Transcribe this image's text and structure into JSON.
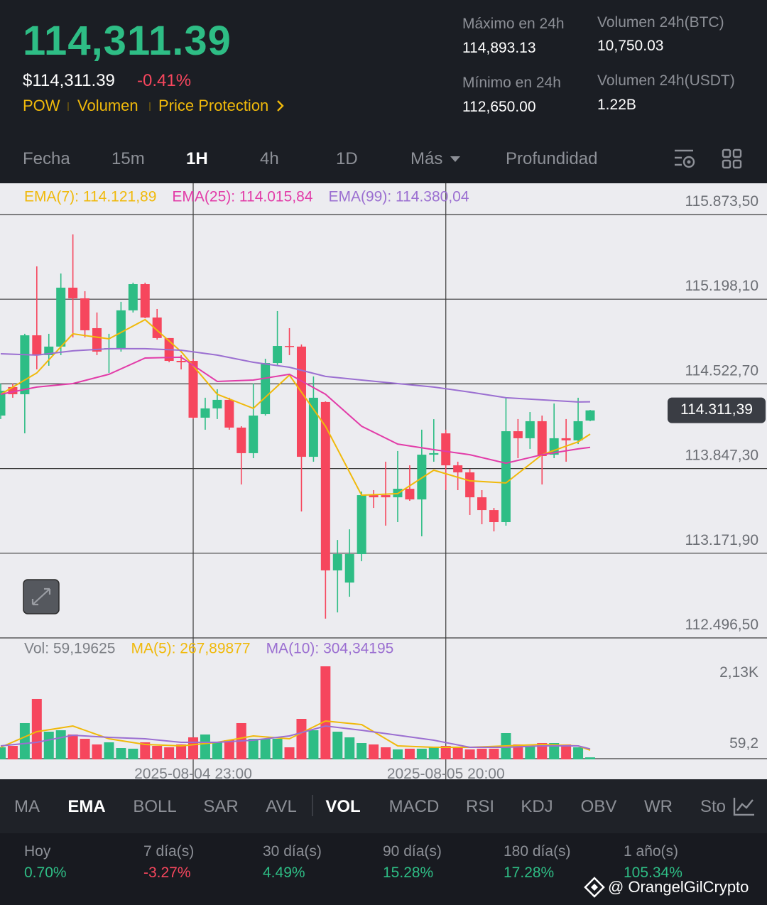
{
  "header": {
    "price": "114,311.39",
    "usd_price": "$114,311.39",
    "change": "-0.41%",
    "tags": [
      "POW",
      "Volumen",
      "Price Protection"
    ],
    "stats": [
      {
        "label": "Máximo en 24h",
        "value": "114,893.13"
      },
      {
        "label": "Volumen 24h(BTC)",
        "value": "10,750.03"
      },
      {
        "label": "Mínimo en 24h",
        "value": "112,650.00"
      },
      {
        "label": "Volumen 24h(USDT)",
        "value": "1.22B"
      }
    ]
  },
  "intervals": {
    "items": [
      "Fecha",
      "15m",
      "1H",
      "4h",
      "1D",
      "Más",
      "Profundidad"
    ],
    "active": 2
  },
  "chart_data": [
    {
      "type": "candlestick",
      "categories": [
        null,
        null,
        null,
        null,
        null,
        null,
        null,
        null,
        null,
        null,
        null,
        null,
        null,
        null,
        null,
        null,
        "2025-08-04 23:00",
        null,
        null,
        null,
        null,
        null,
        null,
        null,
        null,
        null,
        null,
        null,
        null,
        null,
        null,
        null,
        null,
        null,
        null,
        null,
        null,
        "2025-08-05 20:00",
        null,
        null,
        null,
        null,
        null,
        null,
        null,
        null,
        null,
        null,
        null,
        null
      ],
      "open": [
        114270,
        114497,
        114440,
        114910,
        114752,
        114820,
        115290,
        115205,
        114967,
        114797,
        114808,
        115109,
        115318,
        115052,
        114888,
        114706,
        114706,
        114253,
        114327,
        114395,
        114174,
        113970,
        114281,
        114689,
        114825,
        114820,
        113941,
        114378,
        113035,
        112938,
        113165,
        113635,
        113635,
        113618,
        113686,
        113601,
        113958,
        114128,
        113873,
        113817,
        113618,
        113516,
        113420,
        114145,
        114089,
        114225,
        113958,
        114089,
        114072,
        114230
      ],
      "high": [
        114525,
        114525,
        114922,
        115460,
        114922,
        115403,
        115715,
        115262,
        115092,
        114922,
        115177,
        115330,
        115330,
        115120,
        114888,
        114752,
        114723,
        114412,
        114480,
        114412,
        114185,
        114525,
        114723,
        115103,
        114967,
        114837,
        114582,
        114383,
        113278,
        113363,
        113664,
        113675,
        113902,
        113987,
        113873,
        114157,
        114241,
        114157,
        113902,
        113845,
        113675,
        113533,
        114412,
        114242,
        114298,
        114270,
        114366,
        114242,
        114412,
        114315
      ],
      "low": [
        114242,
        114412,
        114128,
        114638,
        114667,
        114752,
        114893,
        114893,
        114752,
        114610,
        114780,
        115092,
        115046,
        114876,
        114695,
        114638,
        114242,
        114157,
        114242,
        114157,
        113720,
        113930,
        114270,
        114667,
        114752,
        113505,
        113902,
        112650,
        112700,
        112825,
        113108,
        113533,
        113392,
        113420,
        113590,
        113307,
        113902,
        113675,
        113675,
        113477,
        113403,
        113346,
        113392,
        113930,
        114004,
        113720,
        113930,
        113902,
        114043,
        114225
      ],
      "close": [
        114468,
        114440,
        114910,
        114752,
        114820,
        115290,
        115205,
        114950,
        114780,
        114808,
        115109,
        115318,
        115052,
        114888,
        114706,
        114695,
        114253,
        114327,
        114395,
        114174,
        113970,
        114270,
        114689,
        114825,
        114820,
        113941,
        114412,
        113035,
        113165,
        113165,
        113635,
        113618,
        113618,
        113686,
        113601,
        113958,
        113970,
        113873,
        113817,
        113618,
        113516,
        113420,
        114145,
        114089,
        114225,
        113947,
        114089,
        114072,
        114225,
        114311.39
      ],
      "up_color": "#2ebd85",
      "down_color": "#f6465d",
      "series": [
        {
          "name": "EMA(7): 114.121,89",
          "color": "#f0b90b",
          "x": [
            0,
            3,
            6,
            9,
            12,
            15,
            18,
            21,
            24,
            27,
            30,
            33,
            36,
            39,
            42,
            45,
            48,
            49
          ],
          "values": [
            114440,
            114610,
            114922,
            114882,
            115035,
            114780,
            114440,
            114327,
            114593,
            114185,
            113635,
            113647,
            113834,
            113749,
            113732,
            113958,
            114060,
            114121.89
          ]
        },
        {
          "name": "EMA(25): 114.015,84",
          "color": "#e23ca8",
          "x": [
            0,
            3,
            6,
            9,
            12,
            15,
            18,
            21,
            24,
            27,
            30,
            33,
            36,
            39,
            42,
            45,
            48,
            49
          ],
          "values": [
            114440,
            114497,
            114525,
            114599,
            114729,
            114735,
            114542,
            114553,
            114599,
            114440,
            114185,
            114043,
            113998,
            113958,
            113890,
            113958,
            114004,
            114015.84
          ]
        },
        {
          "name": "EMA(99): 114.380,04",
          "color": "#9b6fd1",
          "x": [
            0,
            3,
            6,
            9,
            12,
            15,
            18,
            21,
            24,
            27,
            30,
            33,
            36,
            39,
            42,
            45,
            48,
            49
          ],
          "values": [
            114763,
            114752,
            114786,
            114803,
            114803,
            114791,
            114752,
            114695,
            114655,
            114582,
            114553,
            114525,
            114497,
            114457,
            114412,
            114395,
            114378,
            114380.04
          ]
        }
      ],
      "ylim": [
        112496.5,
        116100
      ],
      "yticks": [
        {
          "value": 115873.5,
          "label": "115.873,50"
        },
        {
          "value": 115198.1,
          "label": "115.198,10"
        },
        {
          "value": 114522.7,
          "label": "114.522,70"
        },
        {
          "value": 113847.3,
          "label": "113.847,30"
        },
        {
          "value": 113171.9,
          "label": "113.171,90"
        },
        {
          "value": 112496.5,
          "label": "112.496,50"
        }
      ],
      "grid": true,
      "last_price": {
        "value": 114311.39,
        "label": "114.311,39"
      }
    },
    {
      "type": "bar",
      "label": "Vol: 59,19625",
      "values": [
        352,
        393,
        1056,
        1760,
        807,
        849,
        725,
        600,
        435,
        497,
        331,
        311,
        497,
        393,
        352,
        435,
        642,
        725,
        518,
        559,
        1056,
        600,
        600,
        600,
        352,
        1180,
        849,
        2712,
        807,
        642,
        476,
        435,
        352,
        290,
        311,
        311,
        352,
        393,
        352,
        290,
        311,
        311,
        766,
        435,
        393,
        476,
        476,
        435,
        352,
        59.19625
      ],
      "series": [
        {
          "name": "MA(5): 267,89877",
          "color": "#f0b90b",
          "x": [
            0,
            3,
            6,
            9,
            12,
            15,
            18,
            21,
            24,
            27,
            30,
            33,
            36,
            39,
            42,
            45,
            48,
            49
          ],
          "values": [
            352,
            807,
            973,
            600,
            435,
            393,
            497,
            683,
            600,
            1118,
            1014,
            393,
            352,
            352,
            393,
            435,
            393,
            267.89877
          ]
        },
        {
          "name": "MA(10): 304,34195",
          "color": "#9b6fd1",
          "x": [
            0,
            3,
            6,
            9,
            12,
            15,
            18,
            21,
            24,
            27,
            30,
            33,
            36,
            39,
            42,
            45,
            48,
            49
          ],
          "values": [
            393,
            497,
            704,
            642,
            600,
            497,
            497,
            559,
            683,
            973,
            849,
            704,
            559,
            352,
            352,
            393,
            393,
            304.34195
          ]
        }
      ],
      "ylim": [
        0,
        3540
      ],
      "yticks": [
        {
          "value": 2130,
          "label": "2,13K"
        },
        {
          "value": 59.2,
          "label": "59,2"
        }
      ]
    }
  ],
  "indicators": {
    "items": [
      "MA",
      "EMA",
      "BOLL",
      "SAR",
      "AVL",
      "VOL",
      "MACD",
      "RSI",
      "KDJ",
      "OBV",
      "WR",
      "Sto"
    ],
    "active": [
      1,
      5
    ]
  },
  "performance": [
    {
      "label": "Hoy",
      "value": "0.70%"
    },
    {
      "label": "7 día(s)",
      "value": "-3.27%"
    },
    {
      "label": "30 día(s)",
      "value": "4.49%"
    },
    {
      "label": "90 día(s)",
      "value": "15.28%"
    },
    {
      "label": "180 día(s)",
      "value": "17.28%"
    },
    {
      "label": "1 año(s)",
      "value": "105.34%"
    }
  ],
  "watermark": "@ OrangelGilCrypto"
}
